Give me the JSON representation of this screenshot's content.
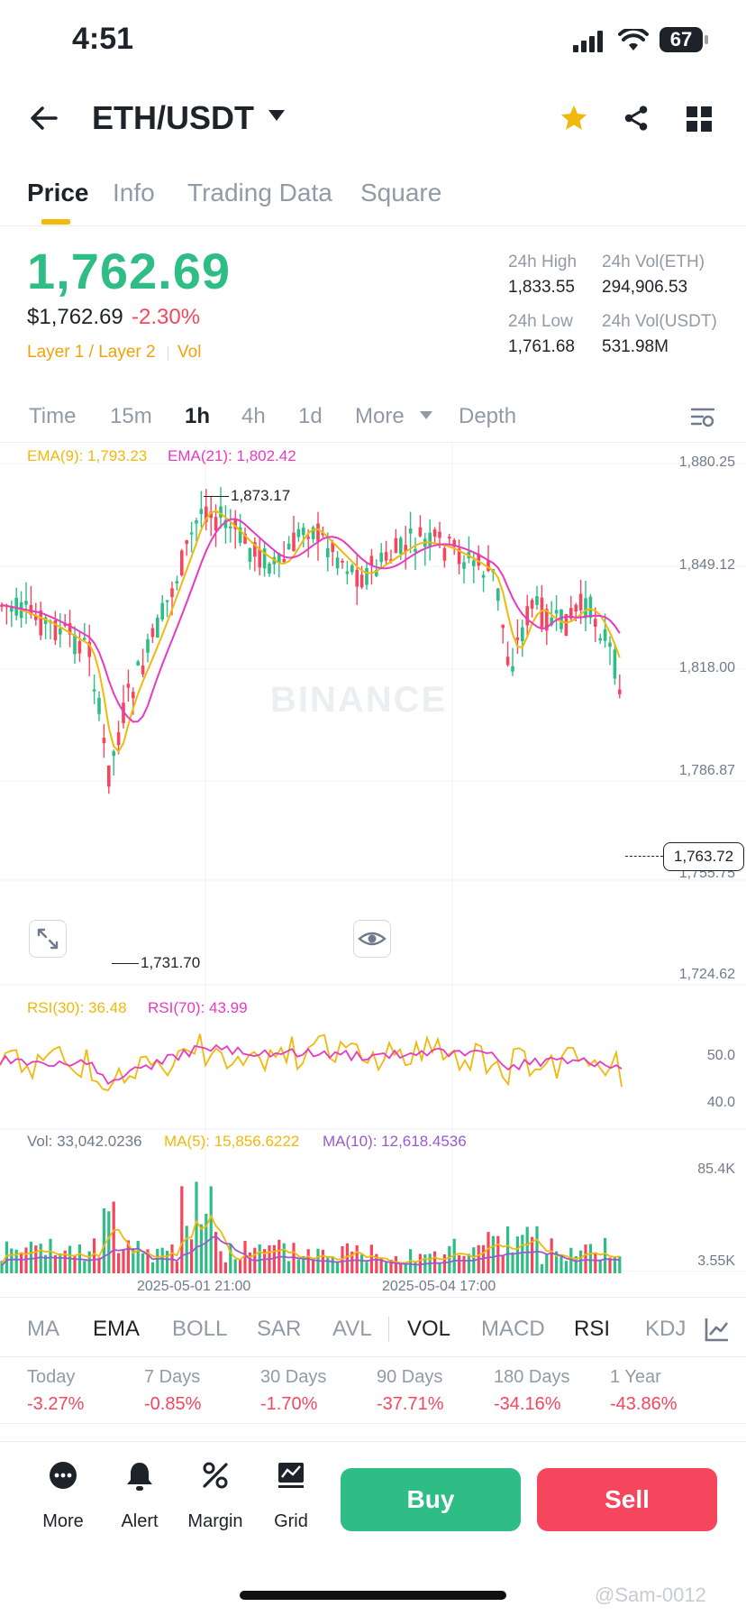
{
  "status_bar": {
    "time": "4:51",
    "battery": "67"
  },
  "header": {
    "pair": "ETH/USDT"
  },
  "tabs": [
    "Price",
    "Info",
    "Trading Data",
    "Square"
  ],
  "price": {
    "last": "1,762.69",
    "fiat": "$1,762.69",
    "change": "-2.30%",
    "tags": [
      "Layer 1 / Layer 2",
      "Vol"
    ]
  },
  "stats": {
    "high_label": "24h High",
    "high": "1,833.55",
    "low_label": "24h Low",
    "low": "1,761.68",
    "vol_eth_label": "24h Vol(ETH)",
    "vol_eth": "294,906.53",
    "vol_usdt_label": "24h Vol(USDT)",
    "vol_usdt": "531.98M"
  },
  "intervals": [
    "Time",
    "15m",
    "1h",
    "4h",
    "1d",
    "More",
    "Depth"
  ],
  "chart": {
    "ema9": "EMA(9): 1,793.23",
    "ema21": "EMA(21): 1,802.42",
    "y_ticks": [
      "1,880.25",
      "1,849.12",
      "1,818.00",
      "1,786.87",
      "1,755.75",
      "1,724.62"
    ],
    "high_marker": "1,873.17",
    "low_marker": "1,731.70",
    "current_price": "1,763.72",
    "watermark": "BINANCE",
    "rsi30": "RSI(30): 36.48",
    "rsi70": "RSI(70): 43.99",
    "rsi_ticks": [
      "50.0",
      "40.0"
    ],
    "vol": "Vol: 33,042.0236",
    "ma5": "MA(5): 15,856.6222",
    "ma10": "MA(10): 12,618.4536",
    "vol_ticks": [
      "85.4K",
      "3.55K"
    ],
    "x_dates": [
      "2025-05-01 21:00",
      "2025-05-04 17:00"
    ]
  },
  "indicators": [
    "MA",
    "EMA",
    "BOLL",
    "SAR",
    "AVL",
    "VOL",
    "MACD",
    "RSI",
    "KDJ"
  ],
  "performance": [
    {
      "label": "Today",
      "value": "-3.27%"
    },
    {
      "label": "7 Days",
      "value": "-0.85%"
    },
    {
      "label": "30 Days",
      "value": "-1.70%"
    },
    {
      "label": "90 Days",
      "value": "-37.71%"
    },
    {
      "label": "180 Days",
      "value": "-34.16%"
    },
    {
      "label": "1 Year",
      "value": "-43.86%"
    }
  ],
  "bottom_nav": [
    "More",
    "Alert",
    "Margin",
    "Grid"
  ],
  "buy_label": "Buy",
  "sell_label": "Sell",
  "credit": "@Sam-0012",
  "colors": {
    "up": "#2ebd85",
    "down": "#f6465d",
    "accent": "#f0b90b",
    "ema9": "#f0b90b",
    "ema21": "#e93ac0",
    "ma10": "#9b59d0"
  }
}
